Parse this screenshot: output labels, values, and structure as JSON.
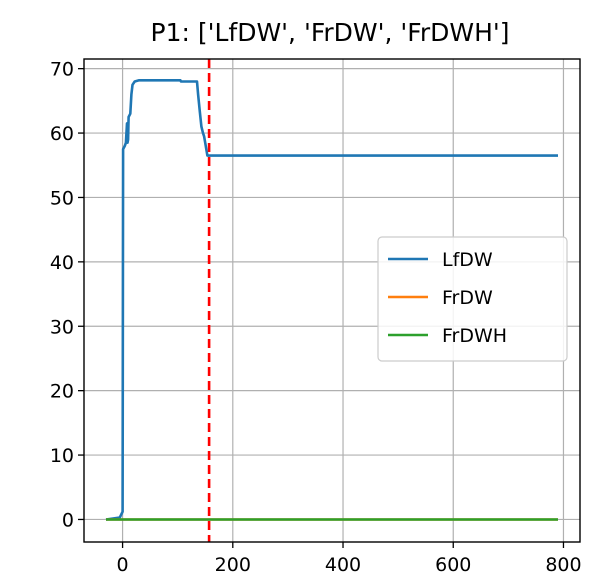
{
  "chart_data": {
    "type": "line",
    "title": "P1: ['LfDW', 'FrDW', 'FrDWH']",
    "xlabel": "",
    "ylabel": "",
    "xlim": [
      -70,
      830
    ],
    "ylim": [
      -3.5,
      71.5
    ],
    "xticks": [
      0,
      200,
      400,
      600,
      800
    ],
    "yticks": [
      0,
      10,
      20,
      30,
      40,
      50,
      60,
      70
    ],
    "grid": true,
    "legend_position": "center-right",
    "vline": {
      "x": 157,
      "color": "#ff0000",
      "style": "dashed"
    },
    "series": [
      {
        "name": "LfDW",
        "color": "#1f77b4",
        "points": [
          [
            -30,
            0
          ],
          [
            -5,
            0.3
          ],
          [
            0,
            1.2
          ],
          [
            1,
            57.5
          ],
          [
            4,
            58.0
          ],
          [
            6,
            58.5
          ],
          [
            8,
            61.5
          ],
          [
            9,
            58.5
          ],
          [
            10,
            59.0
          ],
          [
            11,
            62.5
          ],
          [
            14,
            63.0
          ],
          [
            16,
            66.0
          ],
          [
            18,
            67.5
          ],
          [
            22,
            68.0
          ],
          [
            30,
            68.2
          ],
          [
            60,
            68.2
          ],
          [
            105,
            68.2
          ],
          [
            106,
            68.0
          ],
          [
            135,
            68.0
          ],
          [
            137,
            66.0
          ],
          [
            140,
            63.5
          ],
          [
            143,
            61.0
          ],
          [
            146,
            60.0
          ],
          [
            148,
            59.5
          ],
          [
            150,
            58.5
          ],
          [
            152,
            57.5
          ],
          [
            154,
            56.5
          ],
          [
            157,
            56.5
          ],
          [
            790,
            56.5
          ]
        ]
      },
      {
        "name": "FrDW",
        "color": "#ff7f0e",
        "points": [
          [
            -30,
            0
          ],
          [
            790,
            0
          ]
        ]
      },
      {
        "name": "FrDWH",
        "color": "#2ca02c",
        "points": [
          [
            -30,
            0
          ],
          [
            790,
            0
          ]
        ]
      }
    ]
  }
}
